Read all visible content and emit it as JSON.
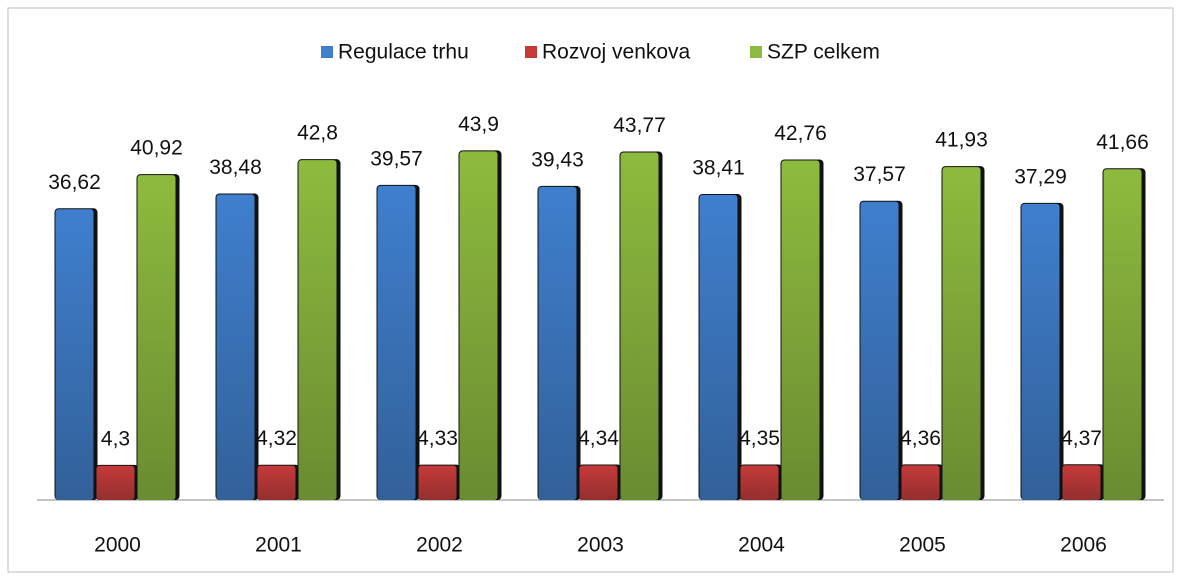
{
  "chart_data": {
    "type": "bar",
    "categories": [
      "2000",
      "2001",
      "2002",
      "2003",
      "2004",
      "2005",
      "2006"
    ],
    "series": [
      {
        "name": "Regulace trhu",
        "color": "#3f7fce",
        "values": [
          36.62,
          38.48,
          39.57,
          39.43,
          38.41,
          37.57,
          37.29
        ],
        "value_labels": [
          "36,62",
          "38,48",
          "39,57",
          "39,43",
          "38,41",
          "37,57",
          "37,29"
        ]
      },
      {
        "name": "Rozvoj venkova",
        "color": "#c63a3a",
        "values": [
          4.3,
          4.32,
          4.33,
          4.34,
          4.35,
          4.36,
          4.37
        ],
        "value_labels": [
          "4,3",
          "4,32",
          "4,33",
          "4,34",
          "4,35",
          "4,36",
          "4,37"
        ]
      },
      {
        "name": "SZP celkem",
        "color": "#8dbb3e",
        "values": [
          40.92,
          42.8,
          43.9,
          43.77,
          42.76,
          41.93,
          41.66
        ],
        "value_labels": [
          "40,92",
          "42,8",
          "43,9",
          "43,77",
          "42,76",
          "41,93",
          "41,66"
        ]
      }
    ],
    "ylim": [
      0,
      50
    ],
    "legend": "top"
  }
}
